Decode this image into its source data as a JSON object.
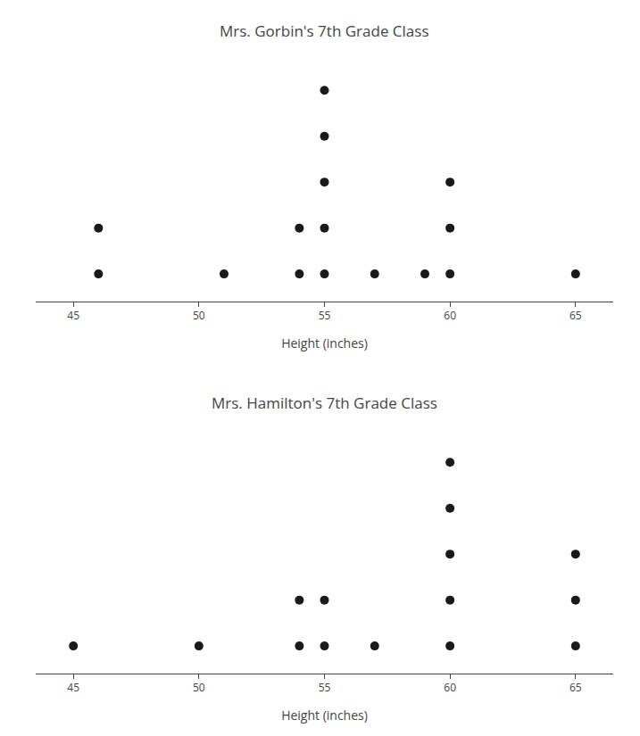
{
  "chart_data": [
    {
      "type": "dot",
      "title": "Mrs. Gorbin's 7th Grade Class",
      "xlabel": "Height (inches)",
      "x": [
        46,
        51,
        54,
        55,
        57,
        59,
        60,
        65
      ],
      "values": [
        2,
        1,
        2,
        5,
        1,
        1,
        3,
        1
      ],
      "color": "#1a1a1a",
      "xlim": [
        43.5,
        66.5
      ],
      "xticks": [
        45,
        50,
        55,
        60,
        65
      ],
      "grid": false,
      "tick_labels": "x"
    },
    {
      "type": "dot",
      "title": "Mrs. Hamilton's 7th Grade Class",
      "xlabel": "Height (inches)",
      "x": [
        45,
        50,
        54,
        55,
        57,
        60,
        65
      ],
      "values": [
        1,
        1,
        2,
        2,
        1,
        5,
        3
      ],
      "color": "#1a1a1a",
      "xlim": [
        43.5,
        66.5
      ],
      "xticks": [
        45,
        50,
        55,
        60,
        65
      ],
      "grid": false,
      "tick_labels": "x"
    }
  ]
}
